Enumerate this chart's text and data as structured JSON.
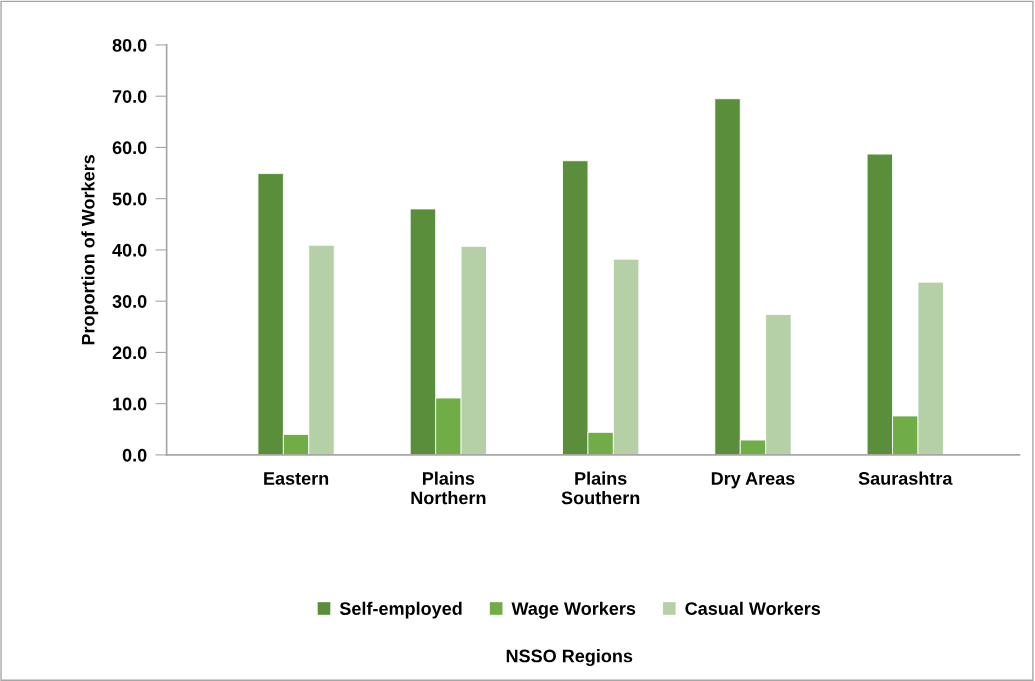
{
  "chart_data": {
    "type": "bar",
    "annotations": [
      "NSSO Regions"
    ],
    "ylabel": "Proportion of Workers",
    "categories": [
      "Eastern",
      "Plains\nNorthern",
      "Plains\nSouthern",
      "Dry Areas",
      "Saurashtra"
    ],
    "series": [
      {
        "name": "Self-employed",
        "color": "#5b8e3a",
        "values": [
          54.9,
          48.0,
          57.4,
          69.5,
          58.7
        ]
      },
      {
        "name": "Wage Workers",
        "color": "#70ad47",
        "values": [
          4.0,
          11.1,
          4.4,
          2.9,
          7.6
        ]
      },
      {
        "name": "Casual Workers",
        "color": "#b5cfa7",
        "values": [
          40.9,
          40.7,
          38.2,
          27.4,
          33.7
        ]
      }
    ],
    "ylim": [
      0,
      80
    ],
    "yticks": [
      {
        "value": 0,
        "label": "0.0"
      },
      {
        "value": 10,
        "label": "10.0"
      },
      {
        "value": 20,
        "label": "20.0"
      },
      {
        "value": 30,
        "label": "30.0"
      },
      {
        "value": 40,
        "label": "40.0"
      },
      {
        "value": 50,
        "label": "50.0"
      },
      {
        "value": 60,
        "label": "60.0"
      },
      {
        "value": 70,
        "label": "70.0"
      },
      {
        "value": 80,
        "label": "80.0"
      }
    ],
    "grid": false,
    "legend": "bottom"
  }
}
